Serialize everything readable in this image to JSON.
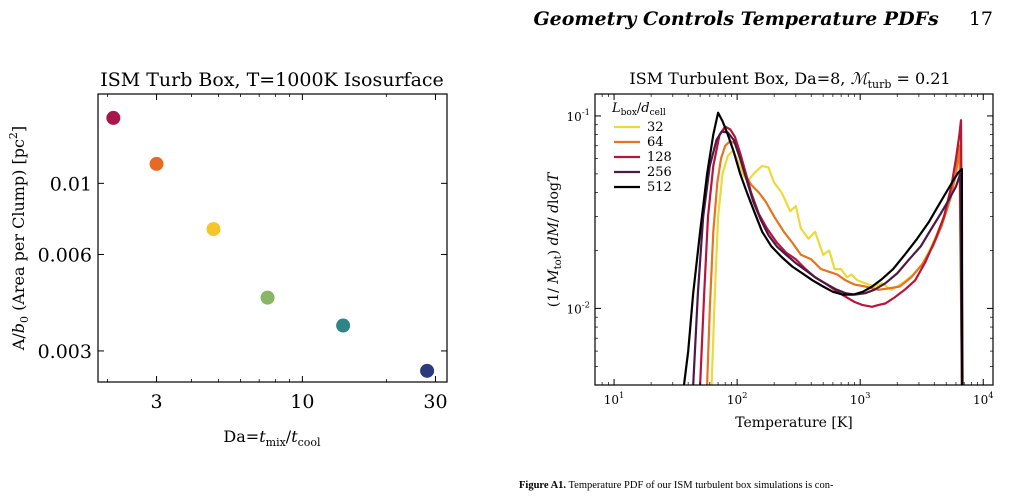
{
  "header": {
    "running_title": "Geometry Controls Temperature PDFs",
    "page_number": "17"
  },
  "chart_data": [
    {
      "type": "scatter",
      "title": "ISM Turb Box, T=1000K Isosurface",
      "xlabel": "Da=t_mix/t_cool",
      "ylabel": "A/b_0 (Area per Clump) [pc^2]",
      "xscale": "log",
      "yscale": "log",
      "xlim": [
        1.85,
        33
      ],
      "ylim": [
        0.0024,
        0.019
      ],
      "xticks": [
        {
          "v": 3,
          "label": "3"
        },
        {
          "v": 10,
          "label": "10"
        },
        {
          "v": 30,
          "label": "30"
        }
      ],
      "yticks": [
        {
          "v": 0.003,
          "label": "0.003"
        },
        {
          "v": 0.006,
          "label": "0.006"
        },
        {
          "v": 0.01,
          "label": "0.01"
        }
      ],
      "grid": false,
      "points": [
        {
          "x": 2.1,
          "y": 0.016,
          "color": "#a8174a"
        },
        {
          "x": 3.0,
          "y": 0.0115,
          "color": "#e56b24"
        },
        {
          "x": 4.8,
          "y": 0.0072,
          "color": "#f6c52a"
        },
        {
          "x": 7.5,
          "y": 0.0044,
          "color": "#88b665"
        },
        {
          "x": 14.0,
          "y": 0.0036,
          "color": "#2f8486"
        },
        {
          "x": 28.0,
          "y": 0.0026,
          "color": "#2a3a7a"
        }
      ]
    },
    {
      "type": "line",
      "title": "ISM Turbulent Box, Da=8, M_turb = 0.21",
      "xlabel": "Temperature [K]",
      "ylabel": "(1/ M_tot) dM/ dlogT",
      "xscale": "log",
      "yscale": "log",
      "xlim": [
        7,
        12000
      ],
      "ylim": [
        0.004,
        0.13
      ],
      "xticks": [
        {
          "v": 10,
          "label": "10^1"
        },
        {
          "v": 100,
          "label": "10^2"
        },
        {
          "v": 1000,
          "label": "10^3"
        },
        {
          "v": 10000,
          "label": "10^4"
        }
      ],
      "yticks": [
        {
          "v": 0.01,
          "label": "10^-2"
        },
        {
          "v": 0.1,
          "label": "10^-1"
        }
      ],
      "legend": {
        "title": "L_box/d_cell",
        "placement": "top-left"
      },
      "grid": false,
      "series": [
        {
          "name": "32",
          "color": "#ecd93a",
          "points": [
            [
              62,
              0.004
            ],
            [
              66,
              0.012
            ],
            [
              70,
              0.03
            ],
            [
              76,
              0.05
            ],
            [
              84,
              0.062
            ],
            [
              92,
              0.066
            ],
            [
              100,
              0.06
            ],
            [
              110,
              0.05
            ],
            [
              122,
              0.046
            ],
            [
              140,
              0.051
            ],
            [
              160,
              0.055
            ],
            [
              180,
              0.054
            ],
            [
              200,
              0.045
            ],
            [
              230,
              0.04
            ],
            [
              270,
              0.032
            ],
            [
              300,
              0.034
            ],
            [
              330,
              0.026
            ],
            [
              380,
              0.023
            ],
            [
              430,
              0.025
            ],
            [
              500,
              0.019
            ],
            [
              560,
              0.02
            ],
            [
              620,
              0.016
            ],
            [
              700,
              0.016
            ],
            [
              780,
              0.0145
            ],
            [
              850,
              0.015
            ],
            [
              950,
              0.014
            ],
            [
              1100,
              0.0135
            ],
            [
              1300,
              0.013
            ],
            [
              1500,
              0.0135
            ],
            [
              1800,
              0.0125
            ],
            [
              2200,
              0.0135
            ],
            [
              2700,
              0.015
            ],
            [
              3200,
              0.017
            ],
            [
              3800,
              0.021
            ],
            [
              4500,
              0.027
            ],
            [
              5300,
              0.036
            ],
            [
              5900,
              0.05
            ],
            [
              6300,
              0.07
            ],
            [
              6500,
              0.08
            ],
            [
              6700,
              0.004
            ]
          ]
        },
        {
          "name": "64",
          "color": "#e4741f",
          "points": [
            [
              57,
              0.004
            ],
            [
              60,
              0.01
            ],
            [
              64,
              0.025
            ],
            [
              69,
              0.045
            ],
            [
              74,
              0.06
            ],
            [
              80,
              0.07
            ],
            [
              88,
              0.074
            ],
            [
              96,
              0.072
            ],
            [
              104,
              0.062
            ],
            [
              115,
              0.05
            ],
            [
              130,
              0.044
            ],
            [
              150,
              0.04
            ],
            [
              170,
              0.036
            ],
            [
              200,
              0.03
            ],
            [
              240,
              0.025
            ],
            [
              280,
              0.022
            ],
            [
              330,
              0.019
            ],
            [
              400,
              0.018
            ],
            [
              480,
              0.016
            ],
            [
              560,
              0.0155
            ],
            [
              650,
              0.015
            ],
            [
              760,
              0.014
            ],
            [
              900,
              0.0133
            ],
            [
              1100,
              0.013
            ],
            [
              1400,
              0.0125
            ],
            [
              1700,
              0.0127
            ],
            [
              2100,
              0.013
            ],
            [
              2600,
              0.0145
            ],
            [
              3200,
              0.017
            ],
            [
              3900,
              0.021
            ],
            [
              4600,
              0.027
            ],
            [
              5400,
              0.037
            ],
            [
              6000,
              0.05
            ],
            [
              6400,
              0.07
            ],
            [
              6700,
              0.004
            ]
          ]
        },
        {
          "name": "128",
          "color": "#b8143c",
          "points": [
            [
              50,
              0.004
            ],
            [
              54,
              0.012
            ],
            [
              58,
              0.03
            ],
            [
              64,
              0.055
            ],
            [
              72,
              0.08
            ],
            [
              80,
              0.088
            ],
            [
              88,
              0.085
            ],
            [
              96,
              0.078
            ],
            [
              106,
              0.064
            ],
            [
              118,
              0.05
            ],
            [
              130,
              0.04
            ],
            [
              150,
              0.031
            ],
            [
              175,
              0.026
            ],
            [
              210,
              0.022
            ],
            [
              250,
              0.0195
            ],
            [
              300,
              0.018
            ],
            [
              360,
              0.016
            ],
            [
              430,
              0.0145
            ],
            [
              520,
              0.0135
            ],
            [
              620,
              0.0125
            ],
            [
              760,
              0.0115
            ],
            [
              900,
              0.0108
            ],
            [
              1050,
              0.0104
            ],
            [
              1250,
              0.0102
            ],
            [
              1400,
              0.0104
            ],
            [
              1600,
              0.0106
            ],
            [
              1900,
              0.0114
            ],
            [
              2300,
              0.0125
            ],
            [
              2800,
              0.014
            ],
            [
              3400,
              0.0175
            ],
            [
              4100,
              0.023
            ],
            [
              4800,
              0.03
            ],
            [
              5500,
              0.043
            ],
            [
              6000,
              0.06
            ],
            [
              6400,
              0.08
            ],
            [
              6600,
              0.095
            ],
            [
              6800,
              0.004
            ]
          ]
        },
        {
          "name": "256",
          "color": "#4d1a45",
          "points": [
            [
              44,
              0.004
            ],
            [
              48,
              0.012
            ],
            [
              53,
              0.03
            ],
            [
              60,
              0.055
            ],
            [
              68,
              0.075
            ],
            [
              75,
              0.083
            ],
            [
              84,
              0.082
            ],
            [
              94,
              0.075
            ],
            [
              106,
              0.06
            ],
            [
              120,
              0.046
            ],
            [
              135,
              0.036
            ],
            [
              155,
              0.029
            ],
            [
              180,
              0.024
            ],
            [
              210,
              0.021
            ],
            [
              250,
              0.019
            ],
            [
              300,
              0.0172
            ],
            [
              360,
              0.0158
            ],
            [
              430,
              0.0145
            ],
            [
              520,
              0.0135
            ],
            [
              630,
              0.0126
            ],
            [
              760,
              0.012
            ],
            [
              900,
              0.0118
            ],
            [
              1100,
              0.012
            ],
            [
              1300,
              0.0125
            ],
            [
              1600,
              0.0135
            ],
            [
              2000,
              0.0152
            ],
            [
              2500,
              0.018
            ],
            [
              3100,
              0.021
            ],
            [
              3800,
              0.026
            ],
            [
              4500,
              0.031
            ],
            [
              5300,
              0.037
            ],
            [
              6000,
              0.043
            ],
            [
              6500,
              0.05
            ],
            [
              6700,
              0.004
            ]
          ]
        },
        {
          "name": "512",
          "color": "#000000",
          "points": [
            [
              37,
              0.004
            ],
            [
              40,
              0.006
            ],
            [
              44,
              0.012
            ],
            [
              50,
              0.025
            ],
            [
              57,
              0.05
            ],
            [
              64,
              0.08
            ],
            [
              70,
              0.104
            ],
            [
              76,
              0.094
            ],
            [
              84,
              0.08
            ],
            [
              94,
              0.065
            ],
            [
              106,
              0.05
            ],
            [
              120,
              0.04
            ],
            [
              140,
              0.031
            ],
            [
              160,
              0.025
            ],
            [
              190,
              0.021
            ],
            [
              230,
              0.0185
            ],
            [
              280,
              0.0165
            ],
            [
              340,
              0.0152
            ],
            [
              410,
              0.014
            ],
            [
              500,
              0.013
            ],
            [
              600,
              0.0122
            ],
            [
              720,
              0.0118
            ],
            [
              880,
              0.0118
            ],
            [
              1050,
              0.0122
            ],
            [
              1250,
              0.013
            ],
            [
              1500,
              0.0142
            ],
            [
              1850,
              0.016
            ],
            [
              2300,
              0.019
            ],
            [
              2900,
              0.023
            ],
            [
              3600,
              0.028
            ],
            [
              4300,
              0.034
            ],
            [
              5100,
              0.041
            ],
            [
              5800,
              0.047
            ],
            [
              6300,
              0.051
            ],
            [
              6700,
              0.053
            ],
            [
              6750,
              0.004
            ]
          ]
        }
      ]
    }
  ],
  "caption": {
    "label": "Figure A1.",
    "text": "Temperature PDF of our ISM turbulent box simulations is con-"
  }
}
